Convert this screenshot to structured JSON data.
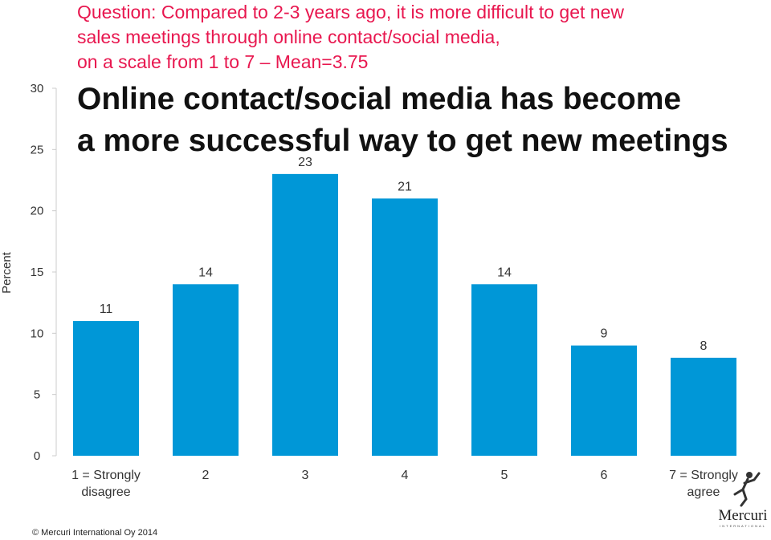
{
  "question": {
    "line1": "Question: Compared to 2-3 years ago, it is more difficult to get new",
    "line2": "sales meetings through online contact/social media,",
    "line3": "on a scale from 1 to 7 – Mean=3.75"
  },
  "headline": {
    "line1": "Online contact/social media has become",
    "line2": "a more successful way to get new meetings"
  },
  "chart_data": {
    "type": "bar",
    "categories": [
      [
        "1 = Strongly",
        "disagree"
      ],
      [
        "2"
      ],
      [
        "3"
      ],
      [
        "4"
      ],
      [
        "5"
      ],
      [
        "6"
      ],
      [
        "7 = Strongly",
        "agree"
      ]
    ],
    "values": [
      11,
      14,
      23,
      21,
      14,
      9,
      8
    ],
    "ylabel": "Percent",
    "ylim": [
      0,
      30
    ],
    "yticks": [
      0,
      5,
      10,
      15,
      20,
      25,
      30
    ],
    "bar_color": "#0097d7",
    "data_labels": true,
    "grid": false
  },
  "footer": {
    "copyright": "© Mercuri International Oy 2014"
  },
  "logo": {
    "name": "Mercuri",
    "tagline": "INTERNATIONAL",
    "icon": "figure-logo-icon"
  }
}
